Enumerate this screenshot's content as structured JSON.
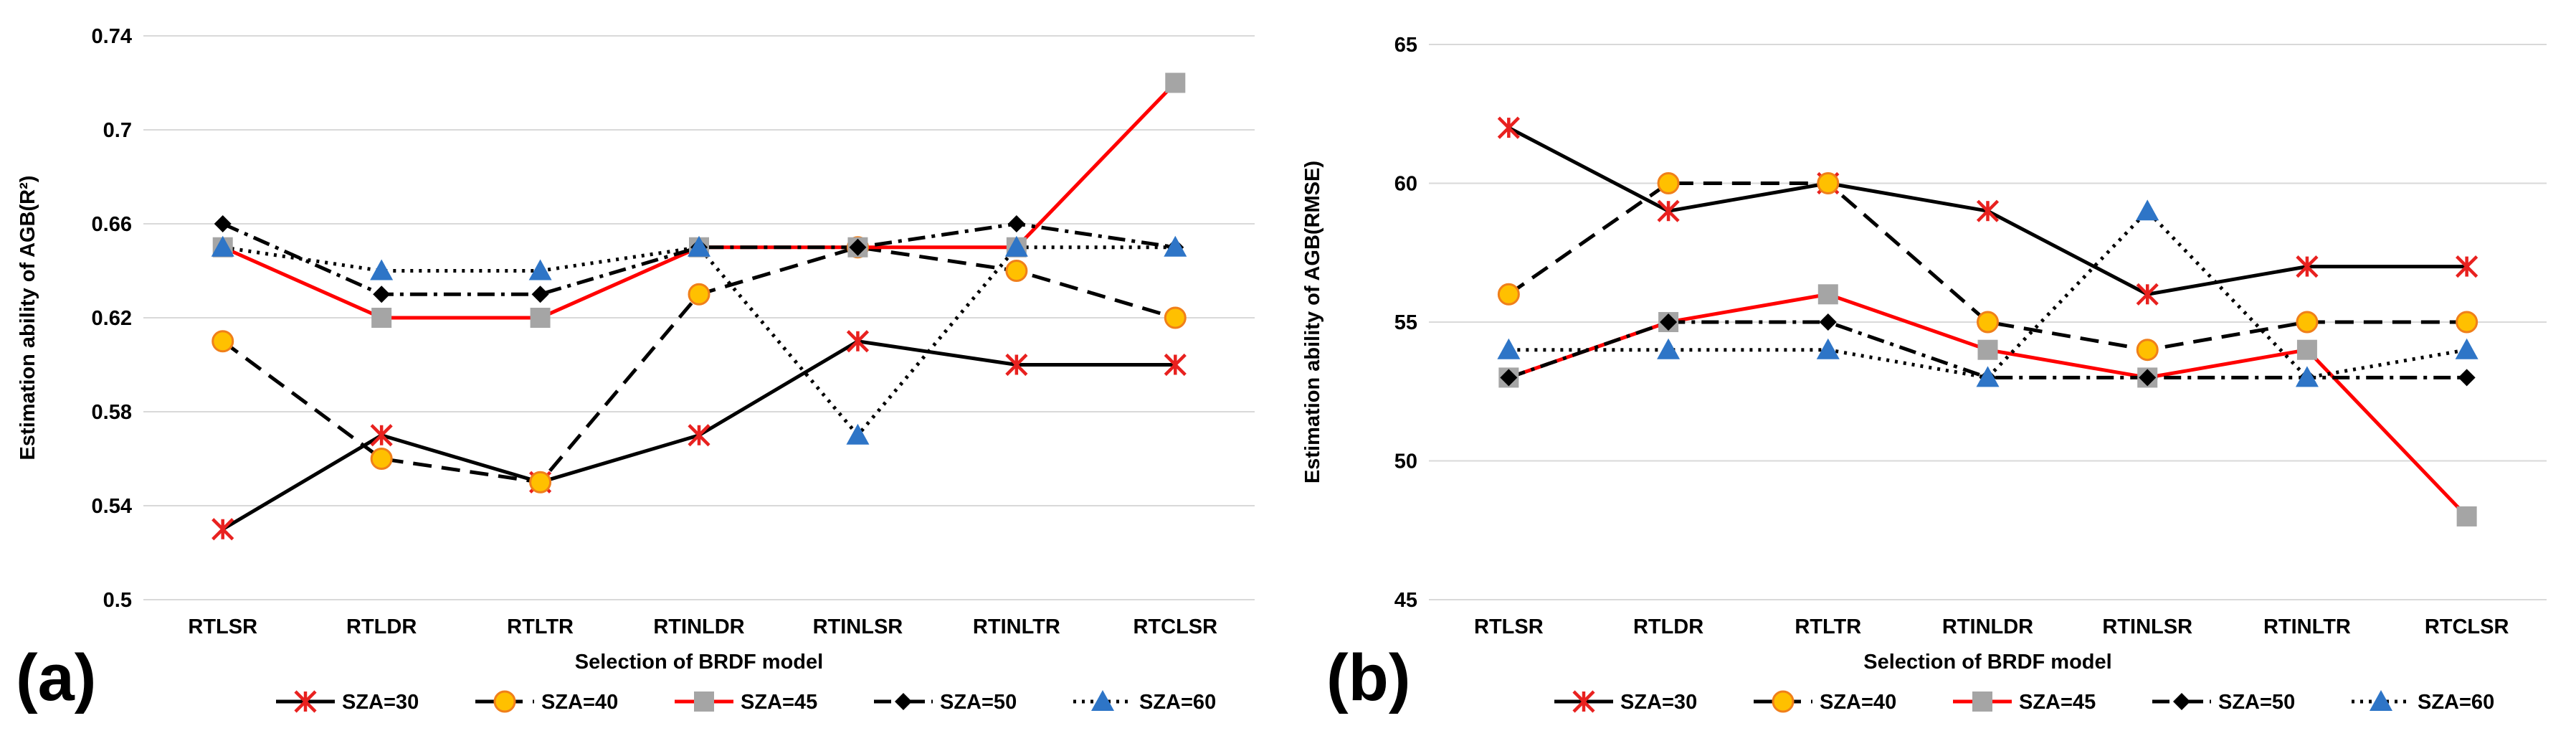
{
  "chart_data": [
    {
      "panel_label": "(a)",
      "type": "line",
      "title": "",
      "xlabel": "Selection of  BRDF model",
      "ylabel": "Estimation ability of AGB(R²)",
      "categories": [
        "RTLSR",
        "RTLDR",
        "RTLTR",
        "RTINLDR",
        "RTINLSR",
        "RTINLTR",
        "RTCLSR"
      ],
      "ylim": [
        0.5,
        0.74
      ],
      "yticks": [
        0.5,
        0.54,
        0.58,
        0.62,
        0.66,
        0.7,
        0.74
      ],
      "ytick_labels": [
        "0.5",
        "0.54",
        "0.58",
        "0.62",
        "0.66",
        "0.7",
        "0.74"
      ],
      "grid": true,
      "legend_position": "bottom",
      "series": [
        {
          "name": "SZA=30",
          "values": [
            0.53,
            0.57,
            0.55,
            0.57,
            0.61,
            0.6,
            0.6
          ]
        },
        {
          "name": "SZA=40",
          "values": [
            0.61,
            0.56,
            0.55,
            0.63,
            0.65,
            0.64,
            0.62
          ]
        },
        {
          "name": "SZA=45",
          "values": [
            0.65,
            0.62,
            0.62,
            0.65,
            0.65,
            0.65,
            0.72
          ]
        },
        {
          "name": "SZA=50",
          "values": [
            0.66,
            0.63,
            0.63,
            0.65,
            0.65,
            0.66,
            0.65
          ]
        },
        {
          "name": "SZA=60",
          "values": [
            0.65,
            0.64,
            0.64,
            0.65,
            0.57,
            0.65,
            0.65
          ]
        }
      ]
    },
    {
      "panel_label": "(b)",
      "type": "line",
      "title": "",
      "xlabel": "Selection of  BRDF model",
      "ylabel": "Estimation ability of AGB(RMSE)",
      "categories": [
        "RTLSR",
        "RTLDR",
        "RTLTR",
        "RTINLDR",
        "RTINLSR",
        "RTINLTR",
        "RTCLSR"
      ],
      "ylim": [
        45,
        65
      ],
      "yticks": [
        45,
        50,
        55,
        60,
        65
      ],
      "ytick_labels": [
        "45",
        "50",
        "55",
        "60",
        "65"
      ],
      "grid": true,
      "legend_position": "bottom",
      "series": [
        {
          "name": "SZA=30",
          "values": [
            62,
            59,
            60,
            59,
            56,
            57,
            57
          ]
        },
        {
          "name": "SZA=40",
          "values": [
            56,
            60,
            60,
            55,
            54,
            55,
            55
          ]
        },
        {
          "name": "SZA=45",
          "values": [
            53,
            55,
            56,
            54,
            53,
            54,
            48
          ]
        },
        {
          "name": "SZA=50",
          "values": [
            53,
            55,
            55,
            53,
            53,
            53,
            53
          ]
        },
        {
          "name": "SZA=60",
          "values": [
            54,
            54,
            54,
            53,
            59,
            53,
            54
          ]
        }
      ]
    }
  ],
  "series_styles": [
    {
      "name": "SZA=30",
      "line_color": "#000000",
      "dash": "solid",
      "marker": "star",
      "marker_color": "#e8211f",
      "marker_stroke": "#e8211f"
    },
    {
      "name": "SZA=40",
      "line_color": "#000000",
      "dash": "dashed",
      "marker": "circle",
      "marker_color": "#ffc000",
      "marker_stroke": "#f07f1a"
    },
    {
      "name": "SZA=45",
      "line_color": "#ff0000",
      "dash": "solid",
      "marker": "square",
      "marker_color": "#a5a5a5",
      "marker_stroke": "#a5a5a5"
    },
    {
      "name": "SZA=50",
      "line_color": "#000000",
      "dash": "dashdot",
      "marker": "diamond",
      "marker_color": "#000000",
      "marker_stroke": "#000000"
    },
    {
      "name": "SZA=60",
      "line_color": "#000000",
      "dash": "dotted",
      "marker": "triangle",
      "marker_color": "#2e75c7",
      "marker_stroke": "#2e75c7"
    }
  ],
  "colors": {
    "gridline": "#d9d9d9"
  }
}
